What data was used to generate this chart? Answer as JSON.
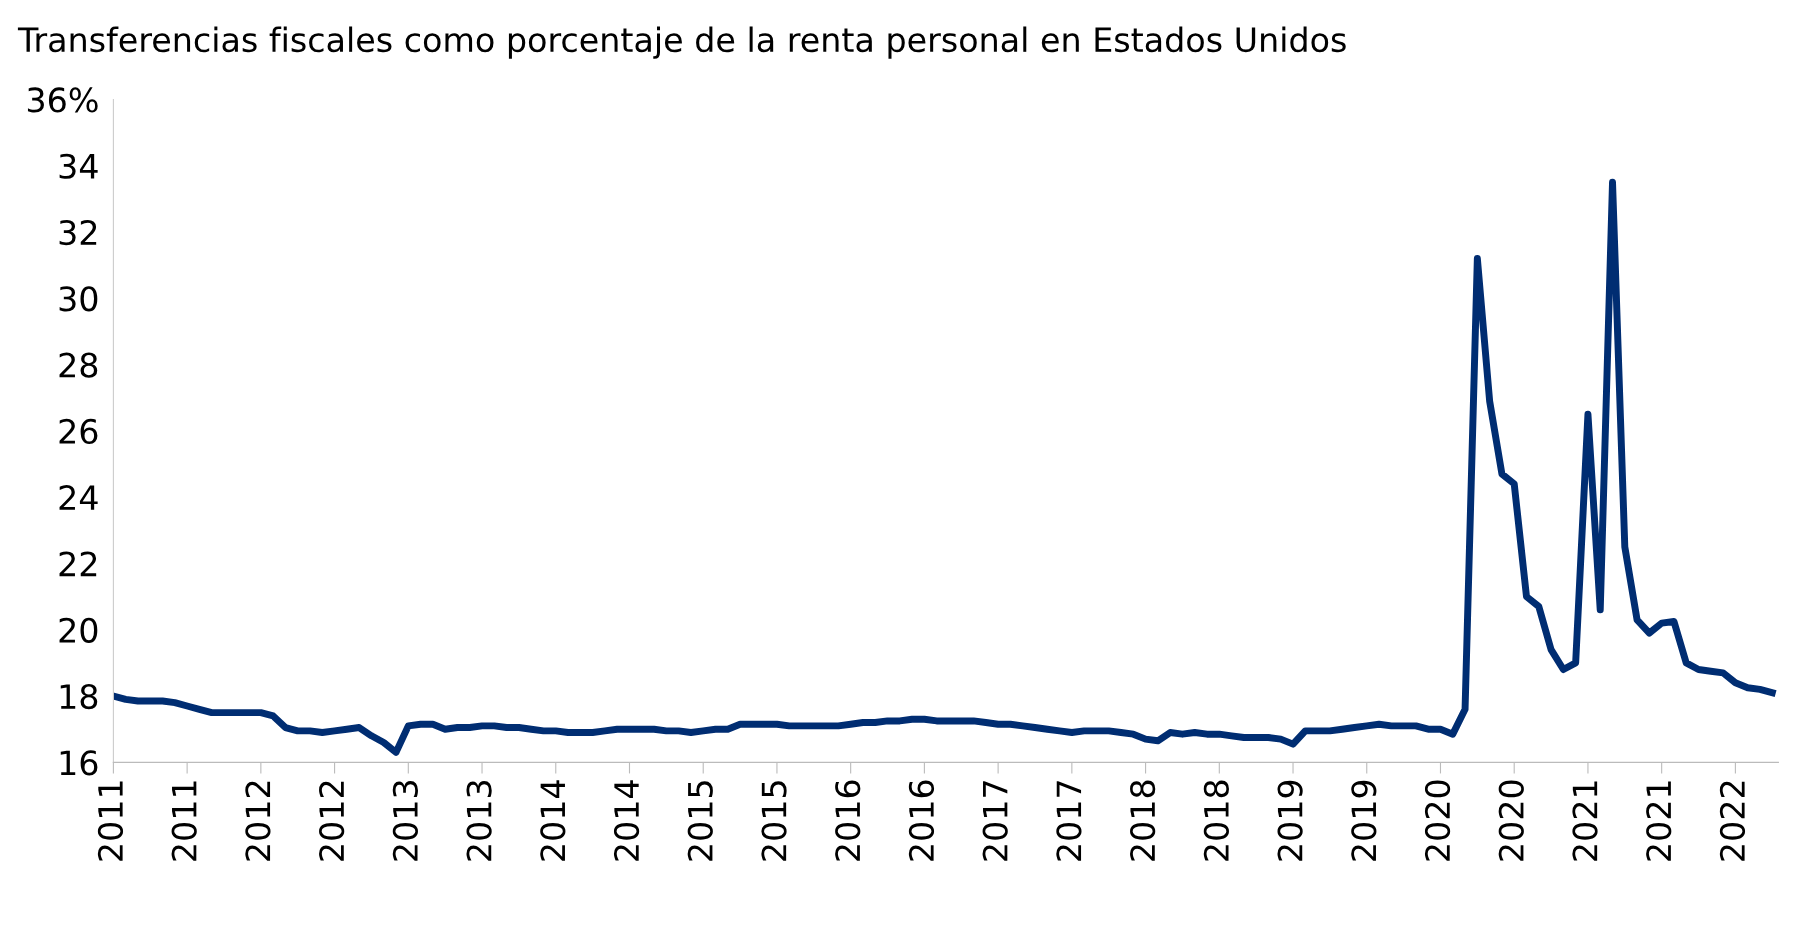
{
  "chart_data": {
    "type": "line",
    "title": "Transferencias fiscales como porcentaje de la renta personal en Estados Unidos",
    "categories": [
      "2011",
      null,
      null,
      null,
      null,
      null,
      "2011",
      null,
      null,
      null,
      null,
      null,
      "2012",
      null,
      null,
      null,
      null,
      null,
      "2012",
      null,
      null,
      null,
      null,
      null,
      "2013",
      null,
      null,
      null,
      null,
      null,
      "2013",
      null,
      null,
      null,
      null,
      null,
      "2014",
      null,
      null,
      null,
      null,
      null,
      "2014",
      null,
      null,
      null,
      null,
      null,
      "2015",
      null,
      null,
      null,
      null,
      null,
      "2015",
      null,
      null,
      null,
      null,
      null,
      "2016",
      null,
      null,
      null,
      null,
      null,
      "2016",
      null,
      null,
      null,
      null,
      null,
      "2017",
      null,
      null,
      null,
      null,
      null,
      "2017",
      null,
      null,
      null,
      null,
      null,
      "2018",
      null,
      null,
      null,
      null,
      null,
      "2018",
      null,
      null,
      null,
      null,
      null,
      "2019",
      null,
      null,
      null,
      null,
      null,
      "2019",
      null,
      null,
      null,
      null,
      null,
      "2020",
      null,
      null,
      null,
      null,
      null,
      "2020",
      null,
      null,
      null,
      null,
      null,
      "2021",
      null,
      null,
      null,
      null,
      null,
      "2021",
      null,
      null,
      null,
      null,
      null,
      "2022",
      null,
      null,
      null
    ],
    "series": [
      {
        "color": "#002d72",
        "values": [
          18.0,
          17.9,
          17.85,
          17.85,
          17.85,
          17.8,
          17.7,
          17.6,
          17.5,
          17.5,
          17.5,
          17.5,
          17.5,
          17.4,
          17.05,
          16.95,
          16.95,
          16.9,
          16.95,
          17.0,
          17.05,
          16.8,
          16.6,
          16.3,
          17.1,
          17.15,
          17.15,
          17.0,
          17.05,
          17.05,
          17.1,
          17.1,
          17.05,
          17.05,
          17.0,
          16.95,
          16.95,
          16.9,
          16.9,
          16.9,
          16.95,
          17.0,
          17.0,
          17.0,
          17.0,
          16.95,
          16.95,
          16.9,
          16.95,
          17.0,
          17.0,
          17.15,
          17.15,
          17.15,
          17.15,
          17.1,
          17.1,
          17.1,
          17.1,
          17.1,
          17.15,
          17.2,
          17.2,
          17.25,
          17.25,
          17.3,
          17.3,
          17.25,
          17.25,
          17.25,
          17.25,
          17.2,
          17.15,
          17.15,
          17.1,
          17.05,
          17.0,
          16.95,
          16.9,
          16.95,
          16.95,
          16.95,
          16.9,
          16.85,
          16.7,
          16.65,
          16.9,
          16.85,
          16.9,
          16.85,
          16.85,
          16.8,
          16.75,
          16.75,
          16.75,
          16.7,
          16.55,
          16.95,
          16.95,
          16.95,
          17.0,
          17.05,
          17.1,
          17.15,
          17.1,
          17.1,
          17.1,
          17.0,
          17.0,
          16.85,
          17.6,
          31.2,
          26.9,
          24.7,
          24.4,
          21.0,
          20.7,
          19.4,
          18.8,
          19.0,
          26.5,
          20.6,
          33.5,
          22.5,
          20.3,
          19.9,
          20.2,
          20.25,
          19.0,
          18.8,
          18.75,
          18.7,
          18.4,
          18.25,
          18.2,
          18.1
        ]
      }
    ],
    "ylim": [
      16,
      36
    ],
    "yticks": [
      16,
      18,
      20,
      22,
      24,
      26,
      28,
      30,
      32,
      34,
      {
        "value": 36,
        "label": "36%"
      }
    ],
    "grid": false,
    "legend": false,
    "marker": "none",
    "line_style": "solid"
  }
}
